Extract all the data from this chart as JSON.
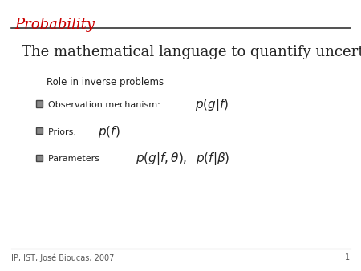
{
  "bg_color": "#ffffff",
  "title_text": "Probability",
  "title_color": "#cc0000",
  "title_fontsize": 13,
  "subtitle_text": "The mathematical language to quantify uncertainty",
  "subtitle_fontsize": 13,
  "role_text": "Role in inverse problems",
  "role_fontsize": 8.5,
  "footer_text": "IP, IST, José Bioucas, 2007",
  "page_num": "1",
  "footer_fontsize": 7,
  "bullet_fontsize": 8,
  "bullet_math_fontsize": 11,
  "line_color": "#555555",
  "text_color": "#222222"
}
